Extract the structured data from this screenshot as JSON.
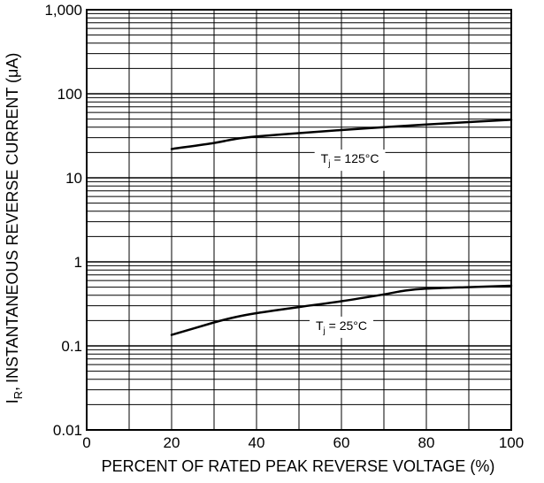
{
  "chart_data": {
    "type": "line",
    "title": "",
    "xlabel": "PERCENT OF RATED  PEAK REVERSE VOLTAGE (%)",
    "ylabel_main": "INSTANTANEOUS REVERSE CURRENT (",
    "ylabel_unit": "μA",
    "ylabel_close": ")",
    "ylabel_symbol": "I",
    "ylabel_subscript": "R",
    "ylabel_comma": ",",
    "xlim": [
      0,
      100
    ],
    "ylim": [
      0.01,
      1000
    ],
    "yscale": "log",
    "grid": true,
    "x_ticks": [
      0,
      20,
      40,
      60,
      80,
      100
    ],
    "x_tick_labels": [
      "0",
      "20",
      "40",
      "60",
      "80",
      "100"
    ],
    "y_ticks": [
      0.01,
      0.1,
      1,
      10,
      100,
      1000
    ],
    "y_tick_labels": [
      "0.01",
      "0.1",
      "1",
      "10",
      "100",
      "1,000"
    ],
    "series": [
      {
        "label_prefix": "T",
        "label_sub": "j",
        "label_suffix": " = 125°C",
        "x": [
          20,
          30,
          35,
          40,
          50,
          60,
          70,
          80,
          90,
          100
        ],
        "y": [
          22,
          26,
          29,
          31,
          34,
          37,
          40,
          43,
          46,
          49
        ]
      },
      {
        "label_prefix": "T",
        "label_sub": "j",
        "label_suffix": " = 25°C",
        "x": [
          20,
          30,
          35,
          40,
          50,
          60,
          70,
          75,
          80,
          90,
          100
        ],
        "y": [
          0.135,
          0.19,
          0.22,
          0.245,
          0.29,
          0.34,
          0.41,
          0.455,
          0.48,
          0.5,
          0.52
        ]
      }
    ]
  }
}
